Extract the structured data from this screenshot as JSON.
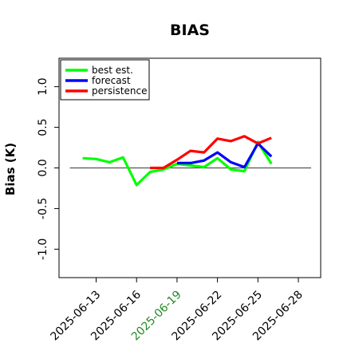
{
  "chart_data": {
    "type": "line",
    "title": "BIAS",
    "ylabel": "Bias (K)",
    "xlabel": "",
    "ylim": [
      -1.35,
      1.35
    ],
    "yticks": [
      "1.0",
      "0.5",
      "0.0",
      "-0.5",
      "-1.0"
    ],
    "x": [
      "2025-06-12",
      "2025-06-13",
      "2025-06-14",
      "2025-06-15",
      "2025-06-16",
      "2025-06-17",
      "2025-06-18",
      "2025-06-19",
      "2025-06-20",
      "2025-06-21",
      "2025-06-22",
      "2025-06-23",
      "2025-06-24",
      "2025-06-25",
      "2025-06-26"
    ],
    "xticks": [
      "2025-06-13",
      "2025-06-16",
      "2025-06-19",
      "2025-06-22",
      "2025-06-25",
      "2025-06-28"
    ],
    "highlight_tick": "2025-06-19",
    "highlight_color": "#228b22",
    "series": [
      {
        "name": "best est.",
        "color": "#00ff00",
        "values": [
          0.12,
          0.11,
          0.07,
          0.13,
          -0.21,
          -0.05,
          -0.02,
          0.05,
          0.03,
          0.01,
          0.12,
          -0.02,
          -0.04,
          0.32,
          0.05
        ]
      },
      {
        "name": "forecast",
        "color": "#0000ff",
        "values": [
          null,
          null,
          null,
          null,
          null,
          null,
          null,
          0.06,
          0.06,
          0.09,
          0.19,
          0.07,
          0.01,
          0.3,
          0.14
        ]
      },
      {
        "name": "persistence",
        "color": "#ff0000",
        "values": [
          null,
          null,
          null,
          null,
          null,
          0.0,
          0.0,
          0.1,
          0.21,
          0.19,
          0.36,
          0.33,
          0.39,
          0.3,
          0.37
        ]
      }
    ],
    "reference_line": 0.0,
    "legend_position": "top-left",
    "grid": false
  }
}
